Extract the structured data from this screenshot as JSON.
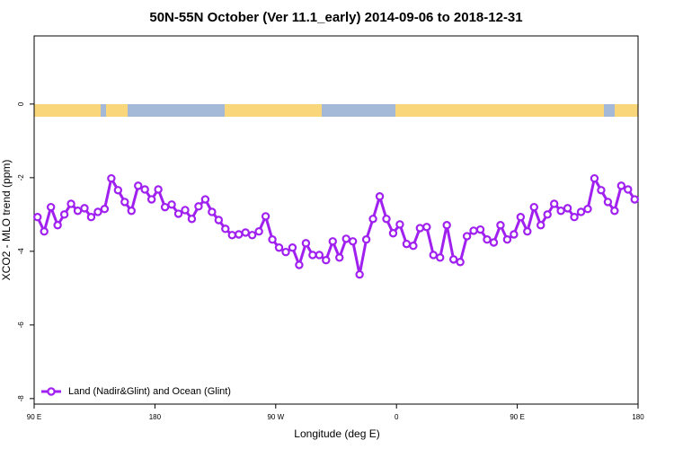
{
  "chart_data": {
    "type": "line",
    "title": "50N-55N October (Ver 11.1_early)   2014-09-06 to 2018-12-31",
    "xlabel": "Longitude (deg E)",
    "ylabel": "XCO2 - MLO trend (ppm)",
    "xlim": [
      90,
      540
    ],
    "ylim": [
      -8.15,
      1.85
    ],
    "xticks": [
      {
        "value": 90,
        "label": "90 E"
      },
      180,
      {
        "value": 270,
        "label": "90 W"
      },
      {
        "value": 360,
        "label": "0"
      },
      {
        "value": 450,
        "label": "90 E"
      },
      {
        "value": 540,
        "label": "180"
      }
    ],
    "yticks": [
      0,
      -2,
      -4,
      -6,
      -8
    ],
    "legend": "lower left",
    "x": [
      92.5,
      97.5,
      102.5,
      107.5,
      112.5,
      117.5,
      122.5,
      127.5,
      132.5,
      137.5,
      142.5,
      147.5,
      152.5,
      157.5,
      162.5,
      167.5,
      172.5,
      177.5,
      182.5,
      187.5,
      192.5,
      197.5,
      202.5,
      207.5,
      212.5,
      217.5,
      222.5,
      227.5,
      232.5,
      237.5,
      242.5,
      247.5,
      252.5,
      257.5,
      262.5,
      267.5,
      272.5,
      277.5,
      282.5,
      287.5,
      292.5,
      297.5,
      302.5,
      307.5,
      312.5,
      317.5,
      322.5,
      327.5,
      332.5,
      337.5,
      342.5,
      347.5,
      352.5,
      357.5,
      362.5,
      367.5,
      372.5,
      377.5,
      382.5,
      387.5,
      392.5,
      397.5,
      402.5,
      407.5,
      412.5,
      417.5,
      422.5,
      427.5,
      432.5,
      437.5,
      442.5,
      447.5,
      452.5,
      457.5,
      462.5,
      467.5,
      472.5,
      477.5,
      482.5,
      487.5,
      492.5,
      497.5,
      502.5,
      507.5,
      512.5,
      517.5,
      522.5,
      527.5,
      532.5,
      537.5
    ],
    "series": [
      {
        "name": "Land (Nadir&Glint) and Ocean (Glint)",
        "color": "#a020f0",
        "values": [
          -3.07,
          -3.46,
          -2.8,
          -3.29,
          -3.0,
          -2.71,
          -2.9,
          -2.83,
          -3.07,
          -2.93,
          -2.85,
          -2.02,
          -2.34,
          -2.66,
          -2.9,
          -2.22,
          -2.32,
          -2.59,
          -2.32,
          -2.8,
          -2.73,
          -2.98,
          -2.88,
          -3.12,
          -2.78,
          -2.59,
          -2.93,
          -3.15,
          -3.39,
          -3.56,
          -3.54,
          -3.49,
          -3.56,
          -3.46,
          -3.05,
          -3.68,
          -3.9,
          -4.02,
          -3.9,
          -4.37,
          -3.78,
          -4.1,
          -4.1,
          -4.24,
          -3.73,
          -4.17,
          -3.66,
          -3.73,
          -4.63,
          -3.68,
          -3.12,
          -2.51,
          -3.12,
          -3.51,
          -3.27,
          -3.8,
          -3.85,
          -3.37,
          -3.34,
          -4.1,
          -4.17,
          -3.29,
          -4.22,
          -4.29,
          -3.59,
          -3.44,
          -3.41,
          -3.68,
          -3.76,
          -3.29,
          -3.68,
          -3.54,
          -3.07,
          -3.46,
          -2.8,
          -3.29,
          -3.0,
          -2.71,
          -2.9,
          -2.83,
          -3.07,
          -2.93,
          -2.85,
          -2.02,
          -2.34,
          -2.66,
          -2.9,
          -2.22,
          -2.32,
          -2.59
        ]
      }
    ]
  }
}
